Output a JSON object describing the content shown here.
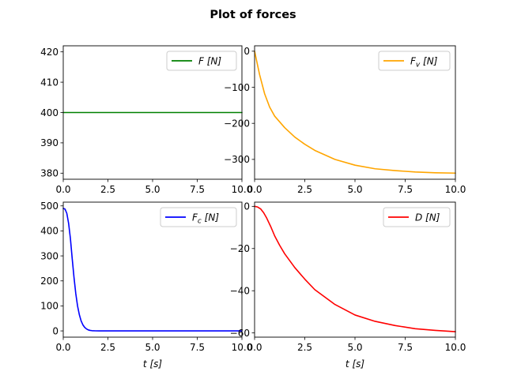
{
  "figure": {
    "title": "Plot of forces"
  },
  "chart_data": [
    {
      "type": "line",
      "xlim": [
        0,
        10
      ],
      "ylim": [
        378,
        422
      ],
      "xticks": [
        "0.0",
        "2.5",
        "5.0",
        "7.5",
        "10.0"
      ],
      "yticks": [
        "380",
        "390",
        "400",
        "410",
        "420"
      ],
      "xlabel": "",
      "ylabel": "",
      "legend": {
        "position": "upper right",
        "entries": [
          "F [N]"
        ]
      },
      "series": [
        {
          "name": "F [N]",
          "color": "#008000",
          "x": [
            0,
            10
          ],
          "y": [
            400,
            400
          ]
        }
      ]
    },
    {
      "type": "line",
      "xlim": [
        0,
        10
      ],
      "ylim": [
        -355,
        15
      ],
      "xticks": [
        "0.0",
        "2.5",
        "5.0",
        "7.5",
        "10.0"
      ],
      "yticks": [
        "0",
        "−100",
        "−200",
        "−300"
      ],
      "xlabel": "",
      "ylabel": "",
      "legend": {
        "position": "upper right",
        "entries": [
          "Fv [N]"
        ]
      },
      "series": [
        {
          "name": "Fv [N]",
          "color": "#ffa500",
          "x": [
            0,
            0.25,
            0.5,
            0.75,
            1.0,
            1.5,
            2.0,
            2.5,
            3.0,
            4.0,
            5.0,
            6.0,
            7.0,
            8.0,
            9.0,
            10.0
          ],
          "y": [
            0,
            -65,
            -118,
            -155,
            -180,
            -212,
            -238,
            -258,
            -275,
            -300,
            -316,
            -326,
            -331,
            -335,
            -337,
            -338
          ]
        }
      ]
    },
    {
      "type": "line",
      "xlim": [
        0,
        10
      ],
      "ylim": [
        -25,
        515
      ],
      "xticks": [
        "0.0",
        "2.5",
        "5.0",
        "7.5",
        "10.0"
      ],
      "yticks": [
        "0",
        "100",
        "200",
        "300",
        "400",
        "500"
      ],
      "xlabel": "t [s]",
      "ylabel": "",
      "legend": {
        "position": "upper right",
        "entries": [
          "Fc [N]"
        ]
      },
      "series": [
        {
          "name": "Fc [N]",
          "color": "#0000ff",
          "x": [
            0,
            0.1,
            0.2,
            0.3,
            0.4,
            0.5,
            0.6,
            0.7,
            0.8,
            0.9,
            1.0,
            1.1,
            1.2,
            1.3,
            1.4,
            1.5,
            1.6,
            1.8,
            2.0,
            2.5,
            5.0,
            7.5,
            10.0
          ],
          "y": [
            490,
            487,
            470,
            430,
            370,
            290,
            215,
            150,
            100,
            65,
            40,
            24,
            14,
            8,
            4,
            2,
            1,
            0.3,
            0,
            0,
            0,
            0,
            0
          ]
        }
      ]
    },
    {
      "type": "line",
      "xlim": [
        0,
        10
      ],
      "ylim": [
        -62,
        2
      ],
      "xticks": [
        "0.0",
        "2.5",
        "5.0",
        "7.5",
        "10.0"
      ],
      "yticks": [
        "0",
        "−20",
        "−40",
        "−60"
      ],
      "xlabel": "t [s]",
      "ylabel": "",
      "legend": {
        "position": "upper right",
        "entries": [
          "D [N]"
        ]
      },
      "series": [
        {
          "name": "D [N]",
          "color": "#ff0000",
          "x": [
            0,
            0.15,
            0.3,
            0.45,
            0.6,
            0.8,
            1.0,
            1.25,
            1.5,
            2.0,
            2.5,
            3.0,
            4.0,
            5.0,
            6.0,
            7.0,
            8.0,
            9.0,
            10.0
          ],
          "y": [
            0,
            -0.3,
            -1.2,
            -3,
            -5.5,
            -9.5,
            -14,
            -18.5,
            -22.5,
            -29,
            -34.5,
            -39.5,
            -46.5,
            -51.5,
            -54.5,
            -56.5,
            -58,
            -58.8,
            -59.4
          ]
        }
      ]
    }
  ]
}
